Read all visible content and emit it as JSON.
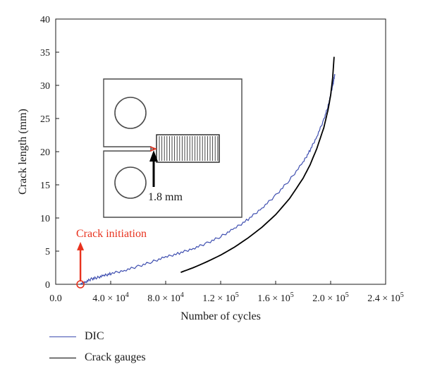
{
  "chart_data": {
    "type": "line",
    "xlabel": "Number of cycles",
    "ylabel": "Crack length (mm)",
    "xlim": [
      0,
      240000
    ],
    "ylim": [
      0,
      40
    ],
    "x_ticks": [
      {
        "value": 0,
        "label": "0.0"
      },
      {
        "value": 40000,
        "label": "4.0 × 10",
        "exp": "4"
      },
      {
        "value": 80000,
        "label": "8.0 × 10",
        "exp": "4"
      },
      {
        "value": 120000,
        "label": "1.2 × 10",
        "exp": "5"
      },
      {
        "value": 160000,
        "label": "1.6 × 10",
        "exp": "5"
      },
      {
        "value": 200000,
        "label": "2.0 × 10",
        "exp": "5"
      },
      {
        "value": 240000,
        "label": "2.4 × 10",
        "exp": "5"
      }
    ],
    "y_ticks": [
      0,
      5,
      10,
      15,
      20,
      25,
      30,
      35,
      40
    ],
    "grid": false,
    "legend_placement": "bottom-left, outside plot",
    "series": [
      {
        "name": "DIC",
        "color": "#3f4fb0",
        "x": [
          18000,
          22000,
          26000,
          30000,
          35000,
          40000,
          50000,
          60000,
          70000,
          80000,
          90000,
          100000,
          110000,
          120000,
          130000,
          140000,
          150000,
          160000,
          170000,
          180000,
          185000,
          190000,
          195000,
          198000,
          200000,
          202000,
          203000
        ],
        "y": [
          0,
          0.4,
          0.8,
          1.0,
          1.3,
          1.6,
          2.1,
          2.7,
          3.4,
          4.1,
          4.7,
          5.4,
          6.2,
          7.2,
          8.4,
          9.8,
          11.5,
          13.4,
          15.7,
          18.4,
          20.2,
          22.3,
          24.8,
          26.8,
          28.5,
          30.5,
          31.7
        ]
      },
      {
        "name": "Crack gauges",
        "color": "#000000",
        "x": [
          91000,
          100000,
          110000,
          120000,
          130000,
          140000,
          150000,
          160000,
          170000,
          180000,
          185000,
          190000,
          195000,
          198000,
          200000,
          201500,
          202500
        ],
        "y": [
          1.8,
          2.5,
          3.4,
          4.4,
          5.6,
          7.0,
          8.6,
          10.5,
          12.9,
          16.0,
          18.0,
          20.5,
          23.6,
          26.2,
          28.5,
          31.2,
          34.3
        ]
      }
    ],
    "annotations": {
      "initiation_label": "Crack initiation",
      "initiation_x": 18000,
      "initiation_color": "#e8321e",
      "inset_dimension": "1.8 mm"
    }
  }
}
